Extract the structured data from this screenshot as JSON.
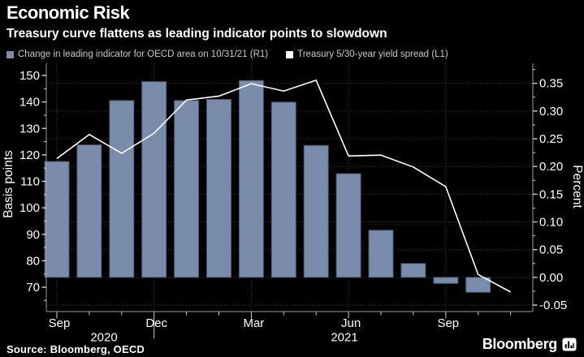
{
  "header": {
    "title": "Economic Risk",
    "subtitle": "Treasury curve flattens as leading indicator points to slowdown"
  },
  "legend": {
    "items": [
      {
        "label": "Change in leading indicator for OECD area on 10/31/21 (R1)",
        "color": "#7a8cab"
      },
      {
        "label": "Treasury 5/30-year yield spread (L1)",
        "color": "#ffffff"
      }
    ]
  },
  "footer": {
    "source": "Source: Bloomberg, OECD",
    "brand": "Bloomberg"
  },
  "colors": {
    "background": "#000000",
    "bar": "#7a8cab",
    "bar_outline": "#46566f",
    "line": "#ffffff",
    "grid": "#3a3a3a",
    "axis": "#9a9a9a",
    "tick": "#cfcfcf",
    "text": "#ffffff",
    "legend_text": "#c8c8c8"
  },
  "chart_data": {
    "type": "combo",
    "grid": "dotted",
    "legend_position": "top",
    "categories": [
      "Sep 2020",
      "Oct 2020",
      "Nov 2020",
      "Dec 2020",
      "Jan 2021",
      "Feb 2021",
      "Mar 2021",
      "Apr 2021",
      "May 2021",
      "Jun 2021",
      "Jul 2021",
      "Aug 2021",
      "Sep 2021",
      "Oct 2021",
      "Nov 2021"
    ],
    "series": [
      {
        "name": "Change in leading indicator for OECD area on 10/31/21 (R1)",
        "type": "bar",
        "axis": "right",
        "unit": "percent",
        "values": [
          0.209,
          0.239,
          0.319,
          0.353,
          0.319,
          0.321,
          0.355,
          0.316,
          0.238,
          0.187,
          0.085,
          0.025,
          -0.011,
          -0.027,
          null
        ]
      },
      {
        "name": "Treasury 5/30-year yield spread (L1)",
        "type": "line",
        "axis": "left",
        "unit": "basis points",
        "values": [
          118.6,
          127.7,
          120.6,
          128.2,
          140.7,
          142.2,
          146.9,
          144.1,
          148.2,
          119.6,
          119.9,
          115.4,
          108.0,
          74.8,
          68.2
        ]
      }
    ],
    "left_axis": {
      "label": "Basis points",
      "ticks": [
        70,
        80,
        90,
        100,
        110,
        120,
        130,
        140,
        150
      ],
      "range": [
        61,
        153
      ]
    },
    "right_axis": {
      "label": "Percent",
      "ticks": [
        "-0.05",
        "0.00",
        "0.05",
        "0.10",
        "0.15",
        "0.20",
        "0.25",
        "0.30",
        "0.35"
      ],
      "range": [
        -0.061,
        0.376
      ]
    },
    "x_axis": {
      "major_ticks": [
        {
          "index": 0,
          "label": "Sep"
        },
        {
          "index": 3,
          "label": "Dec"
        },
        {
          "index": 6,
          "label": "Mar"
        },
        {
          "index": 9,
          "label": "Jun"
        },
        {
          "index": 12,
          "label": "Sep"
        }
      ],
      "year_labels": [
        {
          "label": "2020",
          "x": 128
        },
        {
          "label": "2021",
          "x": 424
        }
      ],
      "year_divider_index": 3
    }
  }
}
